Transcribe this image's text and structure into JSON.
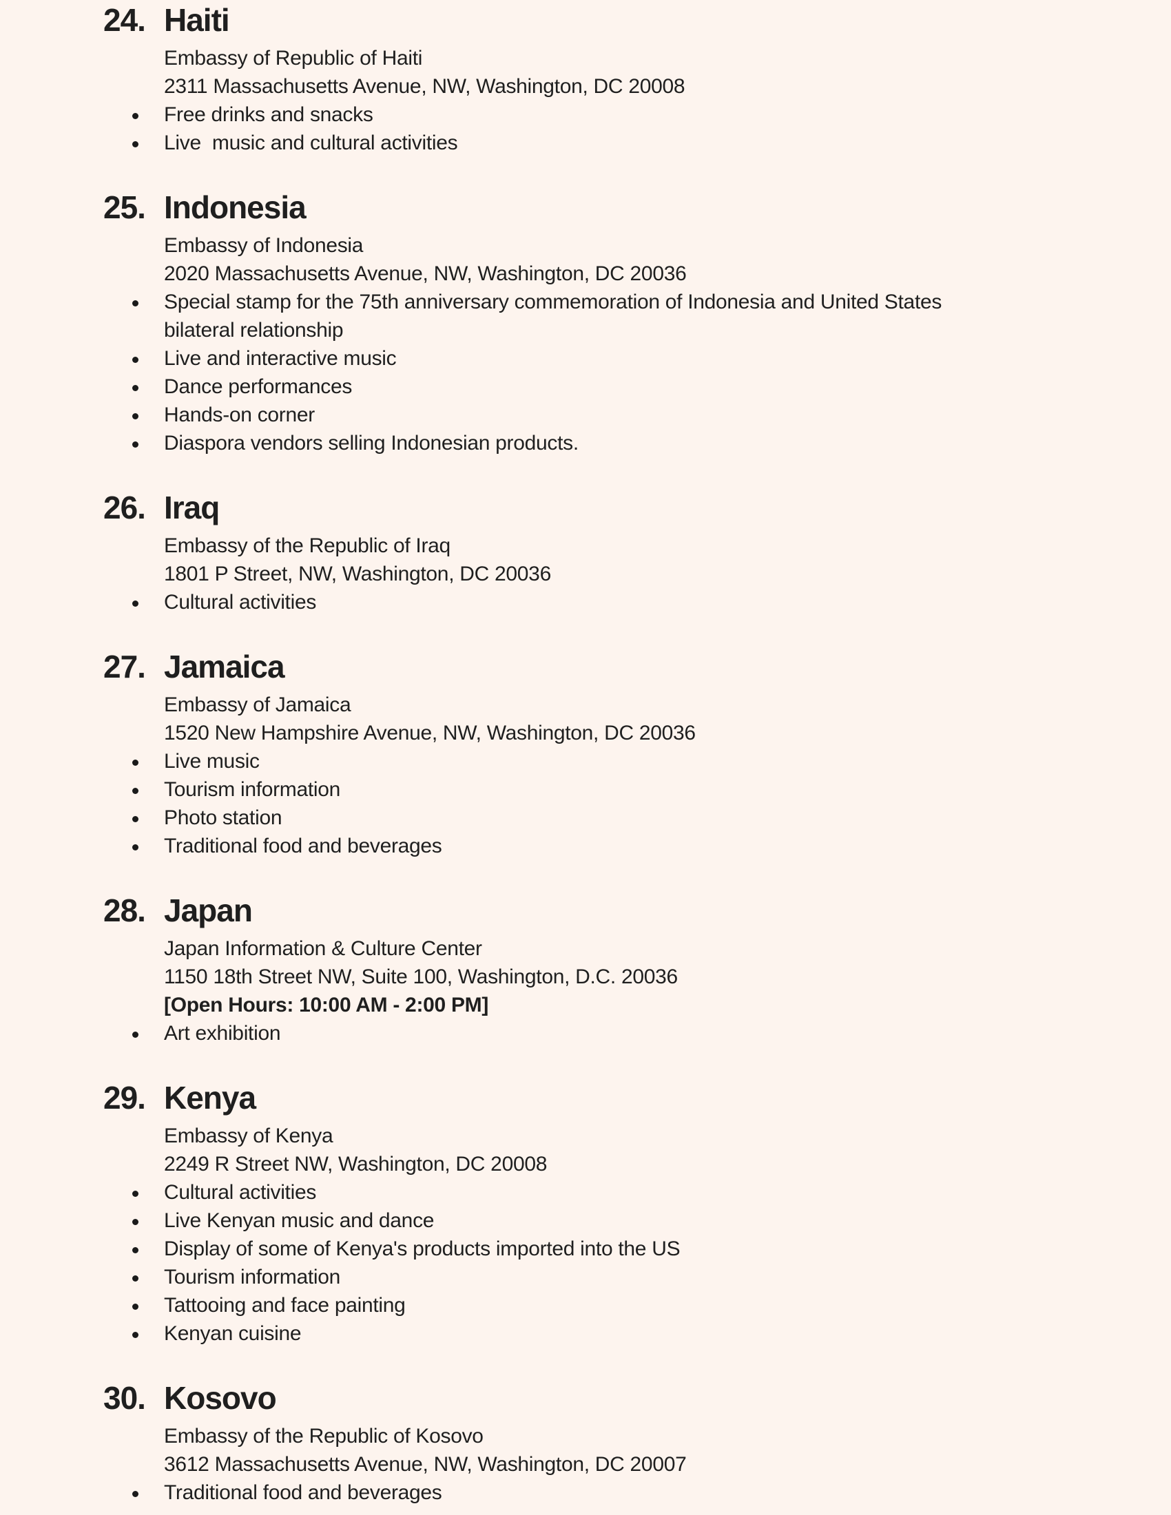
{
  "colors": {
    "background": "#fdf4ee",
    "text": "#1f1f1f"
  },
  "document": {
    "sections": [
      {
        "number": "24.",
        "name": "Haiti",
        "info": [
          {
            "text": "Embassy of Republic of Haiti"
          },
          {
            "text": "2311 Massachusetts Avenue, NW, Washington, DC 20008"
          }
        ],
        "bullets": [
          "Free drinks and snacks",
          "Live  music and cultural activities"
        ]
      },
      {
        "number": "25.",
        "name": "Indonesia",
        "info": [
          {
            "text": "Embassy of Indonesia"
          },
          {
            "text": "2020 Massachusetts Avenue, NW, Washington, DC 20036"
          }
        ],
        "bullets": [
          "Special stamp for the 75th anniversary commemoration of Indonesia and United States bilateral relationship",
          "Live and interactive music",
          "Dance performances",
          "Hands-on corner",
          "Diaspora vendors selling Indonesian products."
        ]
      },
      {
        "number": "26.",
        "name": "Iraq",
        "info": [
          {
            "text": "Embassy of the Republic of Iraq"
          },
          {
            "text": "1801 P Street, NW, Washington, DC 20036"
          }
        ],
        "bullets": [
          "Cultural activities"
        ]
      },
      {
        "number": "27.",
        "name": "Jamaica",
        "info": [
          {
            "text": "Embassy of Jamaica"
          },
          {
            "text": "1520 New Hampshire Avenue, NW, Washington, DC 20036"
          }
        ],
        "bullets": [
          "Live music",
          "Tourism information",
          "Photo station",
          "Traditional food and beverages"
        ]
      },
      {
        "number": "28.",
        "name": "Japan",
        "info": [
          {
            "text": "Japan Information & Culture Center"
          },
          {
            "text": "1150 18th Street NW, Suite 100, Washington, D.C. 20036"
          },
          {
            "text": "[Open Hours: 10:00 AM - 2:00 PM]",
            "bold": true
          }
        ],
        "bullets": [
          "Art exhibition"
        ]
      },
      {
        "number": "29.",
        "name": "Kenya",
        "info": [
          {
            "text": "Embassy of Kenya"
          },
          {
            "text": "2249 R Street NW, Washington, DC 20008"
          }
        ],
        "bullets": [
          "Cultural activities",
          "Live Kenyan music and dance",
          "Display of some of Kenya's products imported into the US",
          "Tourism information",
          "Tattooing and face painting",
          "Kenyan cuisine"
        ]
      },
      {
        "number": "30.",
        "name": "Kosovo",
        "info": [
          {
            "text": "Embassy of the Republic of Kosovo"
          },
          {
            "text": "3612 Massachusetts Avenue, NW, Washington, DC 20007"
          }
        ],
        "bullets": [
          "Traditional food and beverages"
        ]
      }
    ]
  }
}
